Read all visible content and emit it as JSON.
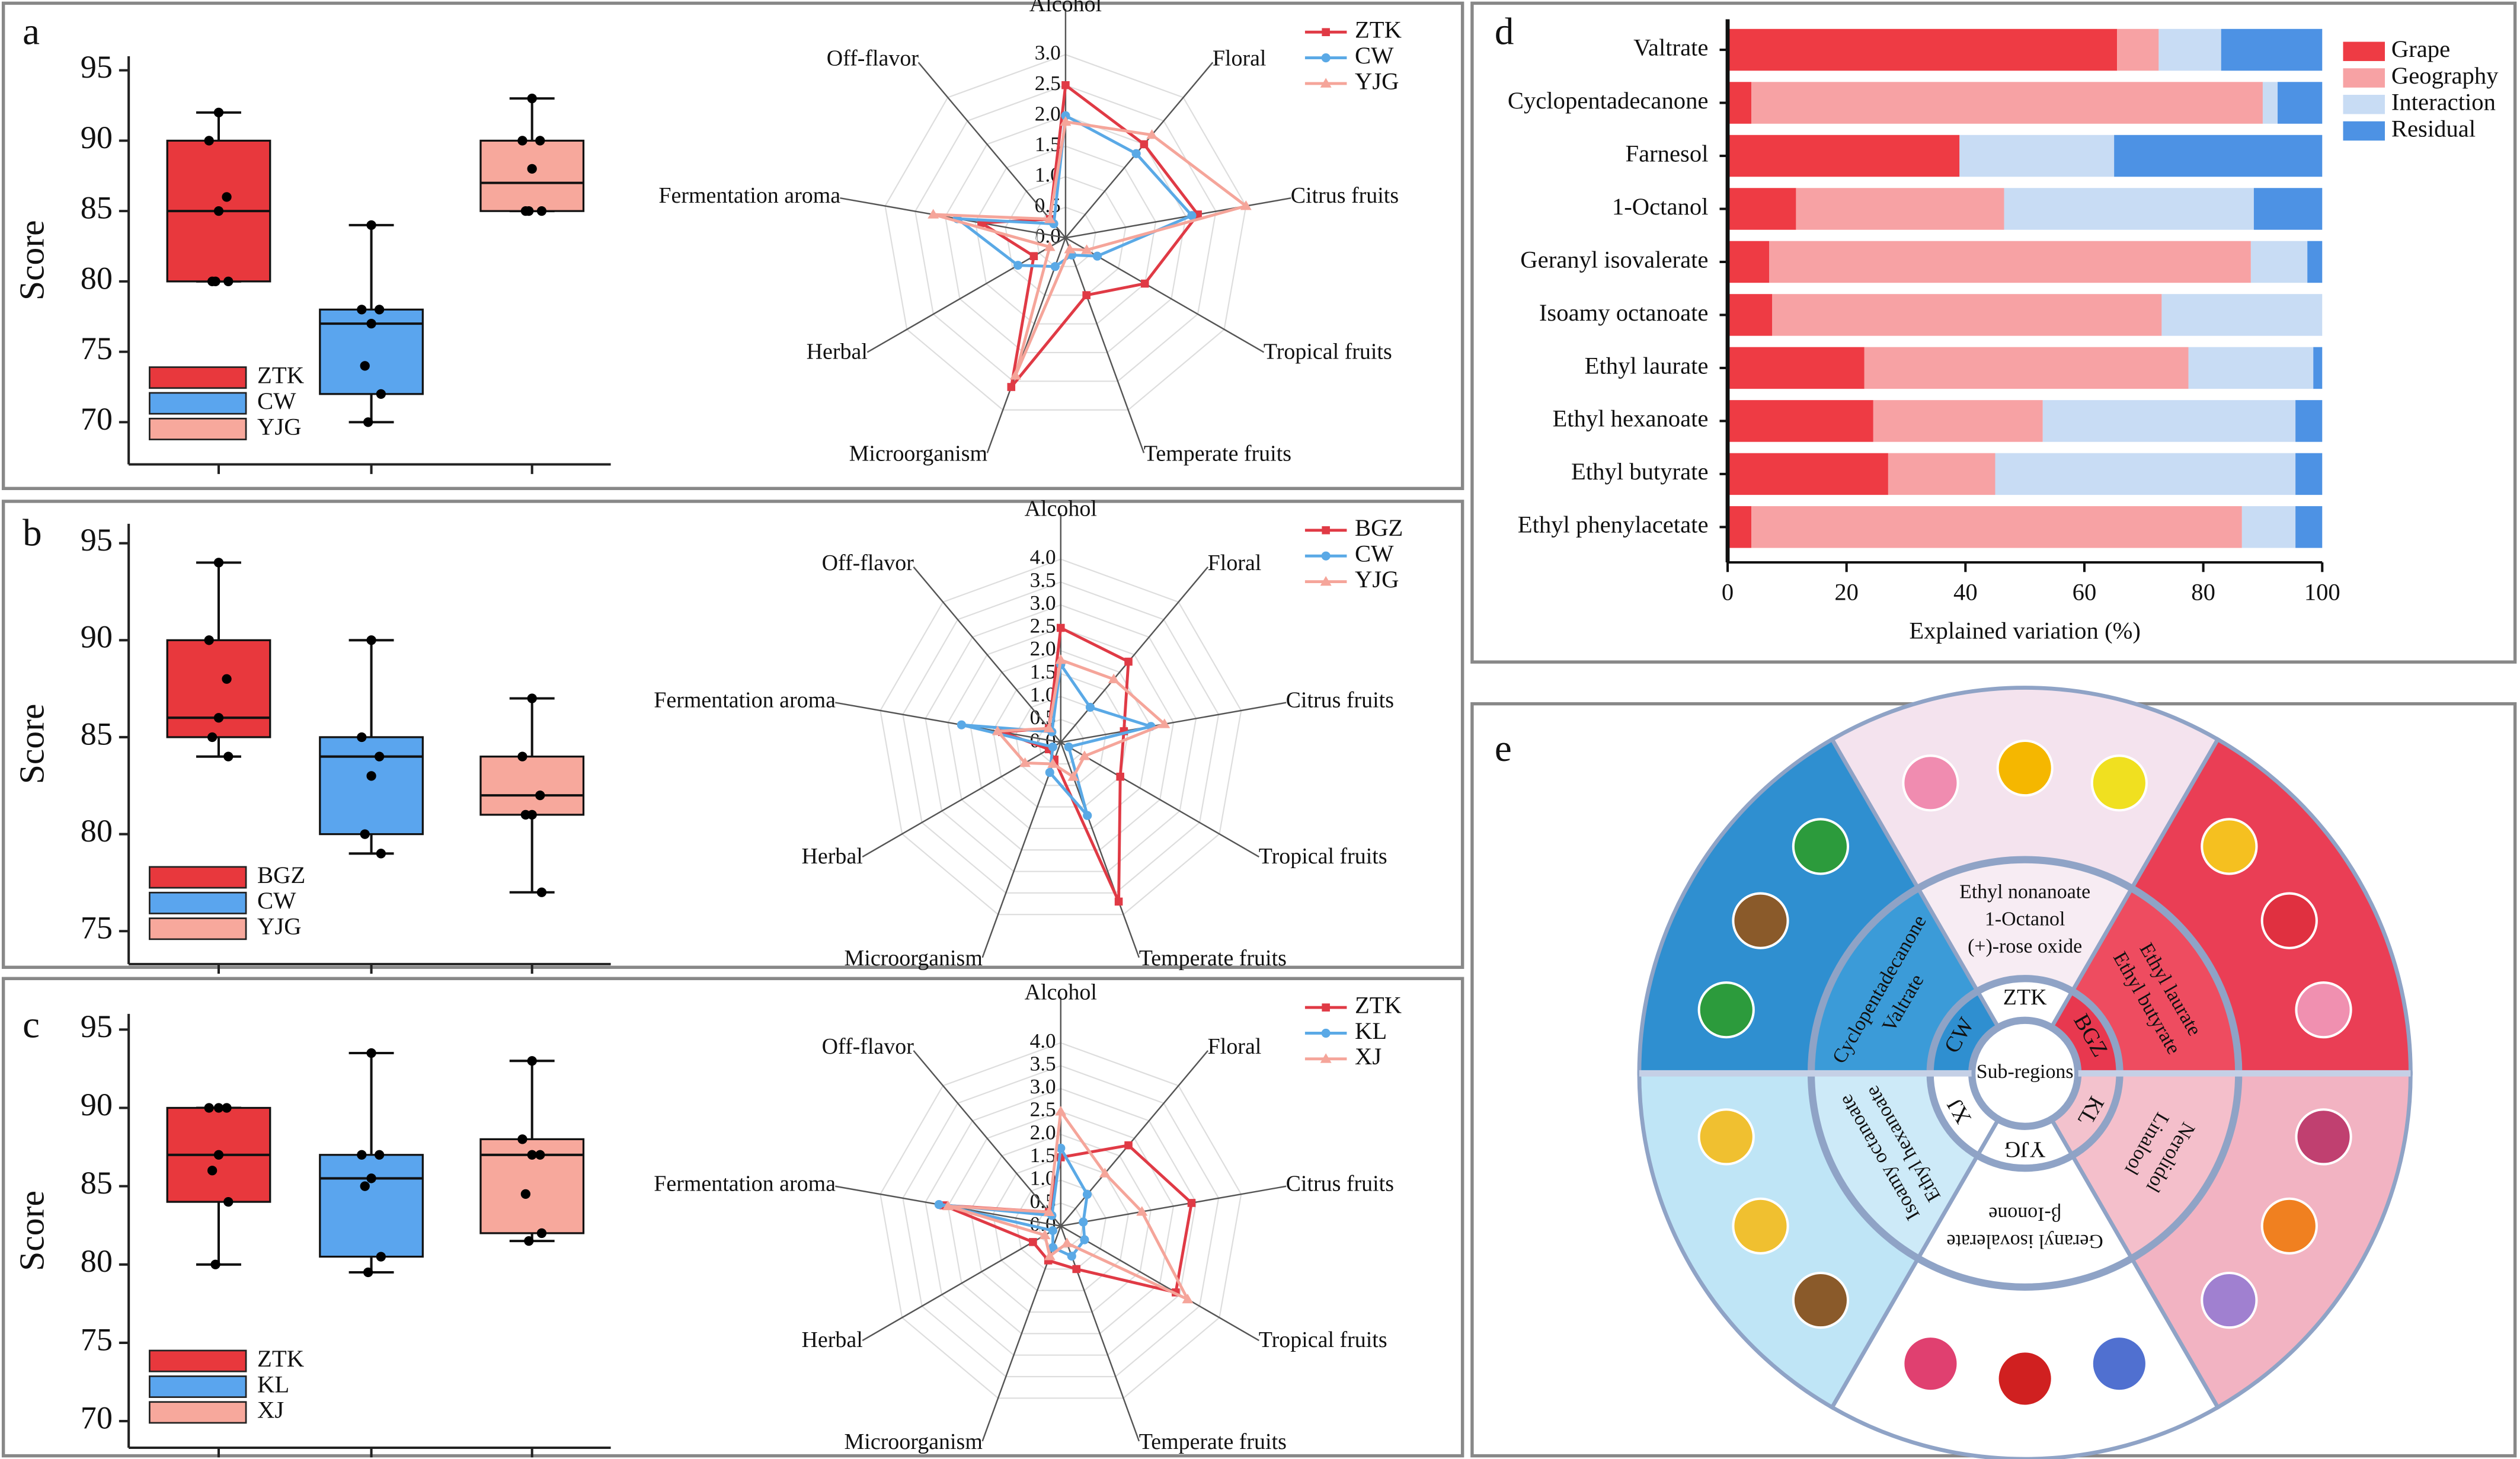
{
  "chart_data": [
    {
      "type": "box",
      "label": "a",
      "ylabel": "Score",
      "ylim": [
        67,
        96
      ],
      "yticks": [
        70,
        75,
        80,
        85,
        90,
        95
      ],
      "legend": "lower left",
      "series": [
        {
          "name": "ZTK",
          "color": "#e8383d",
          "min": 80,
          "q1": 80,
          "median": 85,
          "q3": 90,
          "max": 92,
          "points": [
            92,
            90,
            86,
            85,
            80,
            80,
            80
          ]
        },
        {
          "name": "CW",
          "color": "#5aa5ee",
          "min": 70,
          "q1": 72,
          "median": 77,
          "q3": 78,
          "max": 84,
          "points": [
            84,
            78,
            78,
            77,
            74,
            72,
            70
          ]
        },
        {
          "name": "YJG",
          "color": "#f7a89c",
          "min": 85,
          "q1": 85,
          "median": 87,
          "q3": 90,
          "max": 93,
          "points": [
            93,
            90,
            90,
            88,
            85,
            85,
            85
          ]
        }
      ]
    },
    {
      "type": "radar",
      "rlim": [
        0,
        3
      ],
      "legend": "upper right",
      "rticks": [
        {
          "value": 0,
          "label": "0.0"
        },
        {
          "value": 0.5,
          "label": "0.5"
        },
        {
          "value": 1,
          "label": "1.0"
        },
        {
          "value": 1.5,
          "label": "1.5"
        },
        {
          "value": 2,
          "label": "2.0"
        },
        {
          "value": 2.5,
          "label": "2.5"
        },
        {
          "value": 3,
          "label": "3.0"
        }
      ],
      "axes": [
        "Alcohol",
        "Floral",
        "Citrus fruits",
        "Tropical fruits",
        "Temperate fruits",
        "Microorganism",
        "Herbal",
        "Fermentation aroma",
        "Off-flavor"
      ],
      "series": [
        {
          "name": "ZTK",
          "color": "#e03a45",
          "marker": "square",
          "values": [
            2.5,
            2.0,
            2.2,
            1.5,
            1.0,
            2.6,
            0.6,
            1.4,
            0.4
          ]
        },
        {
          "name": "CW",
          "color": "#5aa9e6",
          "marker": "circle",
          "values": [
            2.0,
            1.8,
            2.1,
            0.6,
            0.3,
            0.5,
            0.9,
            1.8,
            0.3
          ]
        },
        {
          "name": "YJG",
          "color": "#f5a59a",
          "marker": "triangle",
          "values": [
            1.9,
            2.2,
            3.0,
            0.4,
            0.2,
            2.4,
            0.3,
            2.2,
            0.4
          ]
        }
      ]
    },
    {
      "type": "box",
      "label": "b",
      "ylabel": "Score",
      "ylim": [
        73.3,
        96
      ],
      "yticks": [
        75,
        80,
        85,
        90,
        95
      ],
      "legend": "lower left",
      "series": [
        {
          "name": "BGZ",
          "color": "#e8383d",
          "min": 84,
          "q1": 85,
          "median": 86,
          "q3": 90,
          "max": 94,
          "points": [
            94,
            90,
            88,
            86,
            85,
            84
          ]
        },
        {
          "name": "CW",
          "color": "#5aa5ee",
          "min": 79,
          "q1": 80,
          "median": 84,
          "q3": 85,
          "max": 90,
          "points": [
            90,
            85,
            84,
            83,
            80,
            79
          ]
        },
        {
          "name": "YJG",
          "color": "#f7a89c",
          "min": 77,
          "q1": 81,
          "median": 82,
          "q3": 84,
          "max": 87,
          "points": [
            87,
            84,
            82,
            81,
            81,
            77
          ]
        }
      ]
    },
    {
      "type": "radar",
      "rlim": [
        0,
        4
      ],
      "legend": "upper right",
      "rticks": [
        {
          "value": 0,
          "label": "0.0"
        },
        {
          "value": 0.5,
          "label": "0.5"
        },
        {
          "value": 1,
          "label": "1.0"
        },
        {
          "value": 1.5,
          "label": "1.5"
        },
        {
          "value": 2,
          "label": "2.0"
        },
        {
          "value": 2.5,
          "label": "2.5"
        },
        {
          "value": 3,
          "label": "3.0"
        },
        {
          "value": 3.5,
          "label": "3.5"
        },
        {
          "value": 4,
          "label": "4.0"
        }
      ],
      "axes": [
        "Alcohol",
        "Floral",
        "Citrus fruits",
        "Tropical fruits",
        "Temperate fruits",
        "Microorganism",
        "Herbal",
        "Fermentation aroma",
        "Off-flavor"
      ],
      "series": [
        {
          "name": "BGZ",
          "color": "#e03a45",
          "marker": "square",
          "values": [
            2.5,
            2.3,
            1.4,
            1.5,
            3.7,
            0.4,
            0.3,
            1.3,
            0.4
          ]
        },
        {
          "name": "CW",
          "color": "#5aa9e6",
          "marker": "circle",
          "values": [
            1.7,
            1.0,
            2.0,
            0.2,
            1.7,
            0.7,
            0.2,
            2.2,
            0.3
          ]
        },
        {
          "name": "YJG",
          "color": "#f5a59a",
          "marker": "triangle",
          "values": [
            1.8,
            1.8,
            2.3,
            0.6,
            0.8,
            0.5,
            0.9,
            1.4,
            0.4
          ]
        }
      ]
    },
    {
      "type": "box",
      "label": "c",
      "ylabel": "Score",
      "ylim": [
        68.3,
        96
      ],
      "yticks": [
        70,
        75,
        80,
        85,
        90,
        95
      ],
      "legend": "lower left",
      "series": [
        {
          "name": "ZTK",
          "color": "#e8383d",
          "min": 80,
          "q1": 84,
          "median": 87,
          "q3": 90,
          "max": 90,
          "points": [
            90,
            90,
            90,
            87,
            86,
            84,
            80
          ]
        },
        {
          "name": "KL",
          "color": "#5aa5ee",
          "min": 79.5,
          "q1": 80.5,
          "median": 85.5,
          "q3": 87,
          "max": 93.5,
          "points": [
            93.5,
            87,
            87,
            85.5,
            85,
            80.5,
            79.5
          ]
        },
        {
          "name": "XJ",
          "color": "#f7a89c",
          "min": 81.5,
          "q1": 82,
          "median": 87,
          "q3": 88,
          "max": 93,
          "points": [
            93,
            88,
            87,
            87,
            84.5,
            82,
            81.5
          ]
        }
      ]
    },
    {
      "type": "radar",
      "rlim": [
        0,
        4
      ],
      "legend": "upper right",
      "rticks": [
        {
          "value": 0,
          "label": "0.0"
        },
        {
          "value": 0.5,
          "label": "0.5"
        },
        {
          "value": 1,
          "label": "1.0"
        },
        {
          "value": 1.5,
          "label": "1.5"
        },
        {
          "value": 2,
          "label": "2.0"
        },
        {
          "value": 2.5,
          "label": "2.5"
        },
        {
          "value": 3,
          "label": "3.0"
        },
        {
          "value": 3.5,
          "label": "3.5"
        },
        {
          "value": 4,
          "label": "4.0"
        }
      ],
      "axes": [
        "Alcohol",
        "Floral",
        "Citrus fruits",
        "Tropical fruits",
        "Temperate fruits",
        "Microorganism",
        "Herbal",
        "Fermentation aroma",
        "Off-flavor"
      ],
      "series": [
        {
          "name": "ZTK",
          "color": "#e03a45",
          "marker": "square",
          "values": [
            1.5,
            2.3,
            2.9,
            2.9,
            1.0,
            0.8,
            0.7,
            2.6,
            0.4
          ]
        },
        {
          "name": "KL",
          "color": "#5aa9e6",
          "marker": "circle",
          "values": [
            1.7,
            0.9,
            0.5,
            0.6,
            0.7,
            0.5,
            0.2,
            2.7,
            0.3
          ]
        },
        {
          "name": "XJ",
          "color": "#f5a59a",
          "marker": "triangle",
          "values": [
            2.5,
            1.5,
            1.8,
            3.2,
            0.4,
            0.7,
            0.4,
            2.5,
            0.4
          ]
        }
      ]
    },
    {
      "type": "hbar_stacked",
      "label": "d",
      "xlabel": "Explained variation (%)",
      "xlim": [
        0,
        100
      ],
      "xticks": [
        0,
        20,
        40,
        60,
        80,
        100
      ],
      "legend": "upper right",
      "categories": [
        "Valtrate",
        "Cyclopentadecanone",
        "Farnesol",
        "1-Octanol",
        "Geranyl isovalerate",
        "Isoamy octanoate",
        "Ethyl laurate",
        "Ethyl hexanoate",
        "Ethyl butyrate",
        "Ethyl phenylacetate"
      ],
      "series": [
        {
          "name": "Grape",
          "color": "#ee3b44",
          "values": [
            65.5,
            4,
            39,
            11.5,
            7,
            7.5,
            23,
            24.5,
            27,
            4
          ]
        },
        {
          "name": "Geography",
          "color": "#f7a2a4",
          "values": [
            7,
            86,
            0,
            35,
            81,
            65.5,
            54.5,
            28.5,
            18,
            82.5
          ]
        },
        {
          "name": "Interaction",
          "color": "#c8dcf4",
          "values": [
            10.5,
            2.5,
            26,
            42,
            9.5,
            27,
            21,
            42.5,
            50.5,
            9
          ]
        },
        {
          "name": "Residual",
          "color": "#4d92e4",
          "values": [
            17,
            7.5,
            35,
            11.5,
            2.5,
            0,
            1.5,
            4.5,
            4.5,
            4.5
          ]
        }
      ]
    }
  ],
  "diagram": {
    "label": "e",
    "center": "Sub-regions",
    "sectors": [
      {
        "region": "ZTK",
        "compounds": [
          "Ethyl nonanoate",
          "1-Octanol",
          "(+)-rose oxide"
        ]
      },
      {
        "region": "BGZ",
        "compounds": [
          "Ethyl laurate",
          "Ethyl butyrate"
        ]
      },
      {
        "region": "KL",
        "compounds": [
          "Nerolidol",
          "Linalool"
        ]
      },
      {
        "region": "YJG",
        "compounds": [
          "Geranyl isovalerate",
          "β-Ionone"
        ]
      },
      {
        "region": "XJ",
        "compounds": [
          "Isoamy octanoate",
          "Ethyl hexanoate"
        ]
      },
      {
        "region": "CW",
        "compounds": [
          "Cyclopentadecanone",
          "Valtrate"
        ]
      }
    ]
  }
}
